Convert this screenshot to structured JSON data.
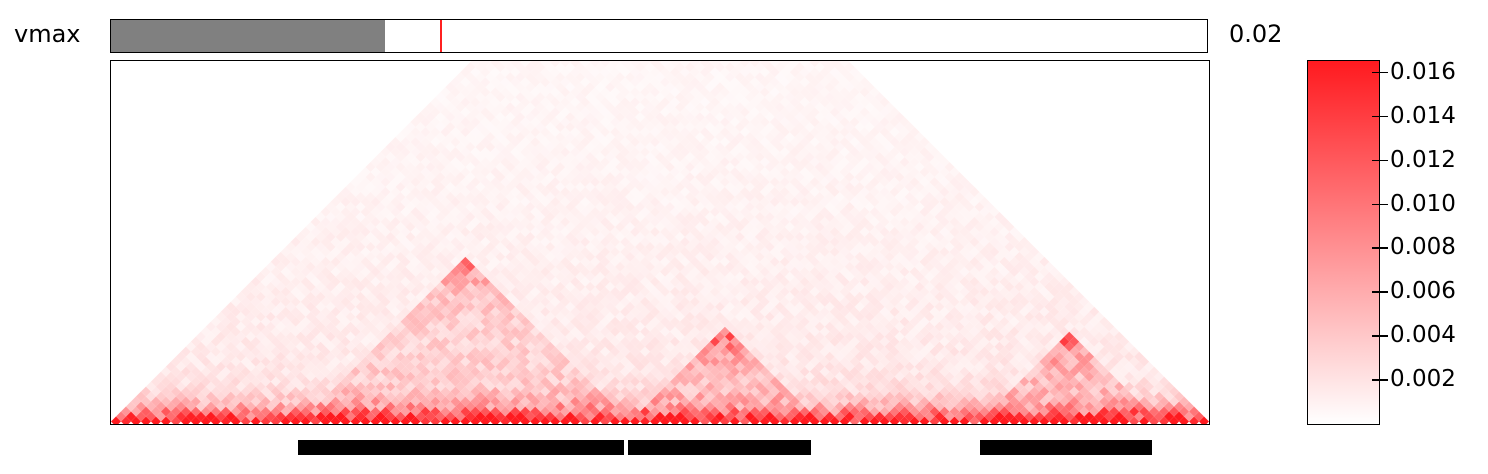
{
  "controls": {
    "vmax_label": "vmax",
    "vmax_value": "0.02",
    "slider_fraction": 0.25,
    "slider_marker_fraction": 0.3
  },
  "chart_data": {
    "type": "heatmap",
    "title": "",
    "xlabel": "",
    "ylabel": "",
    "colormap": {
      "low": "#ffffff",
      "high": "#ff1a1f"
    },
    "colorbar": {
      "ticks": [
        0.002,
        0.004,
        0.006,
        0.008,
        0.01,
        0.012,
        0.014,
        0.016
      ],
      "tick_labels": [
        "0.002",
        "0.004",
        "0.006",
        "0.008",
        "0.010",
        "0.012",
        "0.014",
        "0.016"
      ],
      "range": [
        0,
        0.0165
      ]
    },
    "domains": [
      {
        "start": 0.17,
        "end": 0.47,
        "corner_strength": 0.009
      },
      {
        "start": 0.47,
        "end": 0.64,
        "corner_strength": 0.012
      },
      {
        "start": 0.79,
        "end": 0.95,
        "corner_strength": 0.011
      }
    ]
  }
}
